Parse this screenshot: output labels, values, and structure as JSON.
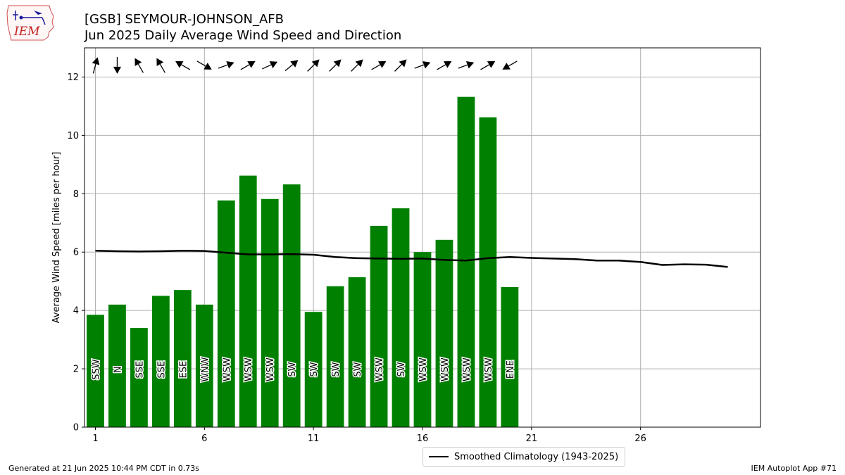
{
  "header": {
    "title_line1": "[GSB] SEYMOUR-JOHNSON_AFB",
    "title_line2": "Jun 2025 Daily Average Wind Speed and Direction"
  },
  "logo": {
    "text": "IEM",
    "icon": "iowa-state-logo"
  },
  "footer": {
    "left": "Generated at 21 Jun 2025 10:44 PM CDT in 0.73s",
    "right": "IEM Autoplot App #71"
  },
  "legend": {
    "label": "Smoothed Climatology (1943-2025)"
  },
  "colors": {
    "bar": "#008000",
    "climatology": "#000000",
    "grid": "#b0b0b0"
  },
  "chart_data": {
    "type": "bar",
    "title": "[GSB] SEYMOUR-JOHNSON_AFB",
    "subtitle": "Jun 2025 Daily Average Wind Speed and Direction",
    "xlabel": "",
    "ylabel": "Average Wind Speed [miles per hour]",
    "xlim": [
      0.5,
      31.5
    ],
    "ylim": [
      0,
      13
    ],
    "xticks": [
      1,
      6,
      11,
      16,
      21,
      26
    ],
    "yticks": [
      0,
      2,
      4,
      6,
      8,
      10,
      12
    ],
    "grid": true,
    "legend_position": "bottom-center",
    "days": [
      1,
      2,
      3,
      4,
      5,
      6,
      7,
      8,
      9,
      10,
      11,
      12,
      13,
      14,
      15,
      16,
      17,
      18,
      19,
      20
    ],
    "speed": [
      3.85,
      4.2,
      3.4,
      4.5,
      4.7,
      4.2,
      7.77,
      8.62,
      7.82,
      8.32,
      3.95,
      4.83,
      5.14,
      6.9,
      7.5,
      6.0,
      6.42,
      11.32,
      10.62,
      4.8
    ],
    "direction_label": [
      "SSW",
      "N",
      "SSE",
      "SSE",
      "ESE",
      "WNW",
      "WSW",
      "WSW",
      "WSW",
      "SW",
      "SW",
      "SW",
      "SW",
      "WSW",
      "SW",
      "WSW",
      "WSW",
      "WSW",
      "WSW",
      "ENE"
    ],
    "arrow_direction_deg": [
      195,
      0,
      150,
      150,
      120,
      300,
      250,
      240,
      245,
      230,
      225,
      225,
      225,
      240,
      225,
      250,
      240,
      250,
      240,
      60
    ],
    "climatology": {
      "name": "Smoothed Climatology (1943-2025)",
      "x": [
        1,
        2,
        3,
        4,
        5,
        6,
        7,
        8,
        9,
        10,
        11,
        12,
        13,
        14,
        15,
        16,
        17,
        18,
        19,
        20,
        21,
        22,
        23,
        24,
        25,
        26,
        27,
        28,
        29,
        30
      ],
      "values": [
        6.05,
        6.03,
        6.02,
        6.03,
        6.05,
        6.04,
        5.98,
        5.92,
        5.92,
        5.93,
        5.91,
        5.83,
        5.79,
        5.78,
        5.77,
        5.78,
        5.73,
        5.71,
        5.79,
        5.83,
        5.8,
        5.78,
        5.76,
        5.71,
        5.71,
        5.66,
        5.56,
        5.58,
        5.57,
        5.49
      ]
    }
  }
}
